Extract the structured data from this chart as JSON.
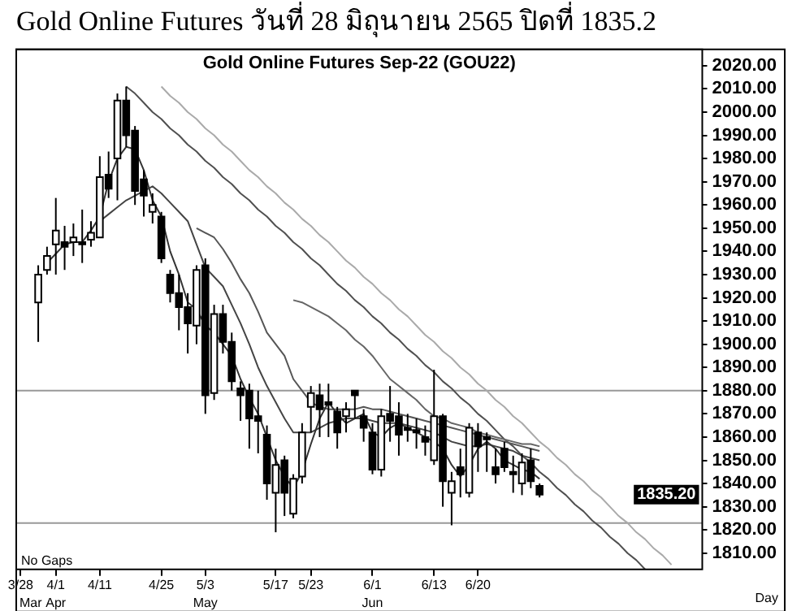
{
  "chart_data": {
    "type": "candlestick",
    "title": "Gold Online Futures วันที่ 28 มิถุนายน 2565 ปิดที่ 1835.2",
    "subtitle": "Gold Online Futures Sep-22 (GOU22)",
    "categories": [
      "3/28",
      null,
      null,
      null,
      "4/1",
      null,
      null,
      null,
      null,
      "4/11",
      null,
      null,
      null,
      null,
      null,
      null,
      "4/25",
      null,
      null,
      null,
      null,
      "5/3",
      null,
      null,
      null,
      null,
      null,
      null,
      null,
      "5/17",
      null,
      null,
      null,
      "5/23",
      null,
      null,
      null,
      null,
      null,
      null,
      "6/1",
      null,
      null,
      null,
      null,
      null,
      null,
      "6/13",
      null,
      null,
      null,
      null,
      "6/20",
      null,
      null,
      null,
      null,
      null,
      null,
      null,
      null,
      null,
      null,
      null,
      null,
      null,
      null,
      null,
      null,
      null,
      null,
      null,
      null,
      null,
      null,
      null,
      null,
      null
    ],
    "ohlc": [
      null,
      null,
      [
        1918,
        1934,
        1901,
        1930
      ],
      [
        1932,
        1942,
        1930,
        1938
      ],
      [
        1943,
        1963,
        1930,
        1949
      ],
      [
        1944,
        1951,
        1932,
        1942
      ],
      [
        1944,
        1952,
        1938,
        1946
      ],
      [
        1944,
        1958,
        1935,
        1943
      ],
      [
        1945,
        1953,
        1942,
        1948
      ],
      [
        1946,
        1981,
        1946,
        1972
      ],
      [
        1973,
        1983,
        1963,
        1967
      ],
      [
        1980,
        2008,
        1962,
        2005
      ],
      [
        2005,
        2011,
        1985,
        1990
      ],
      [
        1992,
        1994,
        1960,
        1966
      ],
      [
        1971,
        1975,
        1955,
        1964
      ],
      [
        1957,
        1965,
        1952,
        1960
      ],
      [
        1955,
        1957,
        1935,
        1937
      ],
      [
        1930,
        1932,
        1918,
        1922
      ],
      [
        1922,
        1930,
        1906,
        1916
      ],
      [
        1916,
        1922,
        1896,
        1909
      ],
      [
        1908,
        1934,
        1900,
        1932
      ],
      [
        1934,
        1937,
        1870,
        1878
      ],
      [
        1879,
        1917,
        1876,
        1913
      ],
      [
        1913,
        1917,
        1896,
        1901
      ],
      [
        1901,
        1905,
        1880,
        1884
      ],
      [
        1881,
        1884,
        1867,
        1878
      ],
      [
        1880,
        1883,
        1855,
        1868
      ],
      [
        1869,
        1880,
        1853,
        1867
      ],
      [
        1861,
        1865,
        1833,
        1840
      ],
      [
        1836,
        1855,
        1819,
        1848
      ],
      [
        1850,
        1852,
        1826,
        1836
      ],
      [
        1827,
        1844,
        1825,
        1842
      ],
      [
        1843,
        1866,
        1840,
        1862
      ],
      [
        1873,
        1882,
        1862,
        1879
      ],
      [
        1878,
        1883,
        1860,
        1872
      ],
      [
        1875,
        1883,
        1860,
        1874
      ],
      [
        1871,
        1873,
        1855,
        1862
      ],
      [
        1869,
        1875,
        1862,
        1872
      ],
      [
        1880,
        1880,
        1868,
        1878
      ],
      [
        1869,
        1872,
        1858,
        1864
      ],
      [
        1862,
        1866,
        1844,
        1846
      ],
      [
        1846,
        1872,
        1843,
        1869
      ],
      [
        1870,
        1882,
        1858,
        1867
      ],
      [
        1869,
        1875,
        1852,
        1861
      ],
      [
        1864,
        1870,
        1858,
        1863
      ],
      [
        1863,
        1868,
        1855,
        1862
      ],
      [
        1860,
        1865,
        1852,
        1858
      ],
      [
        1850,
        1889,
        1848,
        1869
      ],
      [
        1869,
        1870,
        1830,
        1841
      ],
      [
        1836,
        1845,
        1822,
        1841
      ],
      [
        1847,
        1855,
        1834,
        1844
      ],
      [
        1836,
        1866,
        1834,
        1864
      ],
      [
        1862,
        1866,
        1845,
        1856
      ],
      [
        1860,
        1862,
        1845,
        1859
      ],
      [
        1847,
        1855,
        1840,
        1844
      ],
      [
        1855,
        1858,
        1845,
        1847
      ],
      [
        1845,
        1852,
        1836,
        1844
      ],
      [
        1840,
        1853,
        1835,
        1849
      ],
      [
        1850,
        1855,
        1838,
        1841
      ],
      [
        1839,
        1840,
        1834,
        1835.2
      ],
      null,
      null,
      null,
      null,
      null,
      null,
      null,
      null,
      null,
      null,
      null,
      null,
      null,
      null,
      null,
      null,
      null,
      null
    ],
    "series": [
      {
        "type": "line",
        "color": "#333333",
        "values": [
          null,
          null,
          null,
          1935,
          1939,
          1943,
          1944,
          1944,
          1949,
          1955,
          1970,
          1980,
          1985,
          1984,
          1975,
          1962,
          1955,
          1940,
          1930,
          1918,
          1915,
          1908,
          1905,
          1900,
          1895,
          1885,
          1877,
          1870,
          1860,
          1850,
          1843,
          1838,
          1845,
          1857,
          1868,
          1875,
          1870,
          1866,
          1868,
          1870,
          1862,
          1860,
          1864,
          1866,
          1864,
          1862,
          1860,
          1858,
          1855,
          1848,
          1843,
          1848,
          1855,
          1858,
          1855,
          1850,
          1848,
          1846,
          1845,
          1842,
          null,
          null,
          null,
          null,
          null,
          null,
          null,
          null,
          null,
          null,
          null,
          null,
          null,
          null,
          null,
          null,
          null,
          null
        ]
      },
      {
        "type": "line",
        "color": "#444444",
        "values": [
          null,
          null,
          null,
          null,
          null,
          null,
          null,
          null,
          null,
          1953,
          1956,
          1959,
          1962,
          1964,
          1966,
          1968,
          1965,
          1961,
          1957,
          1953,
          1943,
          1933,
          1929,
          1925,
          1917,
          1909,
          1900,
          1890,
          1882,
          1875,
          1868,
          1862,
          1862,
          1862,
          1864,
          1866,
          1867,
          1868,
          1868,
          1868,
          1867,
          1866,
          1866,
          1866,
          1865,
          1864,
          1863,
          1862,
          1860,
          1858,
          1857,
          1856,
          1856,
          1857,
          1856,
          1855,
          1854,
          1852,
          1851,
          1850,
          null,
          null,
          null,
          null,
          null,
          null,
          null,
          null,
          null,
          null,
          null,
          null,
          null,
          null,
          null,
          null,
          null,
          null
        ]
      },
      {
        "type": "line",
        "color": "#555555",
        "values": [
          null,
          null,
          null,
          null,
          null,
          null,
          null,
          null,
          null,
          null,
          null,
          null,
          null,
          null,
          null,
          null,
          null,
          null,
          null,
          null,
          1950,
          1948,
          1946,
          1941,
          1935,
          1928,
          1922,
          1914,
          1905,
          1900,
          1895,
          1885,
          1880,
          1875,
          1873,
          1872,
          1872,
          1872,
          1872,
          1873,
          1872,
          1872,
          1871,
          1870,
          1869,
          1868,
          1867,
          1866,
          1865,
          1864,
          1863,
          1862,
          1861,
          1860,
          1859,
          1858,
          1857,
          1856,
          1855,
          1854,
          null,
          null,
          null,
          null,
          null,
          null,
          null,
          null,
          null,
          null,
          null,
          null,
          null,
          null,
          null,
          null,
          null,
          null
        ]
      },
      {
        "type": "line",
        "color": "#666666",
        "values": [
          null,
          null,
          null,
          null,
          null,
          null,
          null,
          null,
          null,
          null,
          null,
          null,
          null,
          null,
          null,
          null,
          null,
          null,
          null,
          null,
          null,
          null,
          null,
          null,
          null,
          null,
          null,
          null,
          null,
          null,
          null,
          1919,
          1918,
          1916,
          1914,
          1912,
          1909,
          1906,
          1902,
          1899,
          1895,
          1890,
          1885,
          1882,
          1879,
          1876,
          1872,
          1869,
          1868,
          1866,
          1865,
          1864,
          1862,
          1861,
          1860,
          1859,
          1858,
          1857,
          1857,
          1856,
          null,
          null,
          null,
          null,
          null,
          null,
          null,
          null,
          null,
          null,
          null,
          null,
          null,
          null,
          null,
          null,
          null,
          null
        ]
      },
      {
        "type": "line",
        "color": "#505050",
        "values": [
          null,
          null,
          null,
          null,
          null,
          null,
          null,
          null,
          null,
          null,
          null,
          null,
          2011,
          2008,
          2004,
          2000,
          1997,
          1993,
          1990,
          1986,
          1983,
          1979,
          1976,
          1972,
          1969,
          1965,
          1962,
          1958,
          1955,
          1951,
          1948,
          1944,
          1941,
          1937,
          1934,
          1930,
          1926,
          1923,
          1919,
          1916,
          1912,
          1909,
          1905,
          1902,
          1898,
          1895,
          1891,
          1888,
          1884,
          1881,
          1877,
          1874,
          1870,
          1867,
          1863,
          1859,
          1856,
          1852,
          1849,
          1845,
          1842,
          1838,
          1835,
          1831,
          1828,
          1824,
          1821,
          1817,
          1814,
          1810,
          1807,
          1803,
          null,
          null,
          null,
          null,
          null,
          null
        ]
      },
      {
        "type": "line",
        "color": "#aaaaaa",
        "values": [
          null,
          null,
          null,
          null,
          null,
          null,
          null,
          null,
          null,
          null,
          null,
          null,
          null,
          null,
          null,
          null,
          2011,
          2007,
          2004,
          2000,
          1997,
          1993,
          1990,
          1986,
          1983,
          1979,
          1975,
          1972,
          1968,
          1965,
          1961,
          1958,
          1954,
          1951,
          1947,
          1944,
          1940,
          1936,
          1933,
          1929,
          1926,
          1922,
          1919,
          1915,
          1912,
          1908,
          1904,
          1901,
          1897,
          1894,
          1890,
          1887,
          1883,
          1880,
          1876,
          1873,
          1869,
          1866,
          1862,
          1858,
          1855,
          1851,
          1848,
          1844,
          1841,
          1837,
          1834,
          1830,
          1826,
          1823,
          1819,
          1816,
          1812,
          1809,
          1805,
          null,
          null,
          null
        ]
      }
    ],
    "ylim": [
      1803,
      2027
    ],
    "yticks": [
      {
        "value": 1810,
        "label": "1810.00"
      },
      {
        "value": 1820,
        "label": "1820.00"
      },
      {
        "value": 1830,
        "label": "1830.00"
      },
      {
        "value": 1840,
        "label": "1840.00"
      },
      {
        "value": 1850,
        "label": "1850.00"
      },
      {
        "value": 1860,
        "label": "1860.00"
      },
      {
        "value": 1870,
        "label": "1870.00"
      },
      {
        "value": 1880,
        "label": "1880.00"
      },
      {
        "value": 1890,
        "label": "1890.00"
      },
      {
        "value": 1900,
        "label": "1900.00"
      },
      {
        "value": 1910,
        "label": "1910.00"
      },
      {
        "value": 1920,
        "label": "1920.00"
      },
      {
        "value": 1930,
        "label": "1930.00"
      },
      {
        "value": 1940,
        "label": "1940.00"
      },
      {
        "value": 1950,
        "label": "1950.00"
      },
      {
        "value": 1960,
        "label": "1960.00"
      },
      {
        "value": 1970,
        "label": "1970.00"
      },
      {
        "value": 1980,
        "label": "1980.00"
      },
      {
        "value": 1990,
        "label": "1990.00"
      },
      {
        "value": 2000,
        "label": "2000.00"
      },
      {
        "value": 2010,
        "label": "2010.00"
      },
      {
        "value": 2020,
        "label": "2020.00"
      }
    ],
    "ref_lines": [
      {
        "axis": "y",
        "value": 1880,
        "color": "#999999"
      },
      {
        "axis": "y",
        "value": 1823,
        "color": "#999999"
      }
    ],
    "annotations": [
      "No Gaps",
      "Mar",
      "Apr",
      "May",
      "Jun",
      "Day",
      "1835.20"
    ]
  }
}
